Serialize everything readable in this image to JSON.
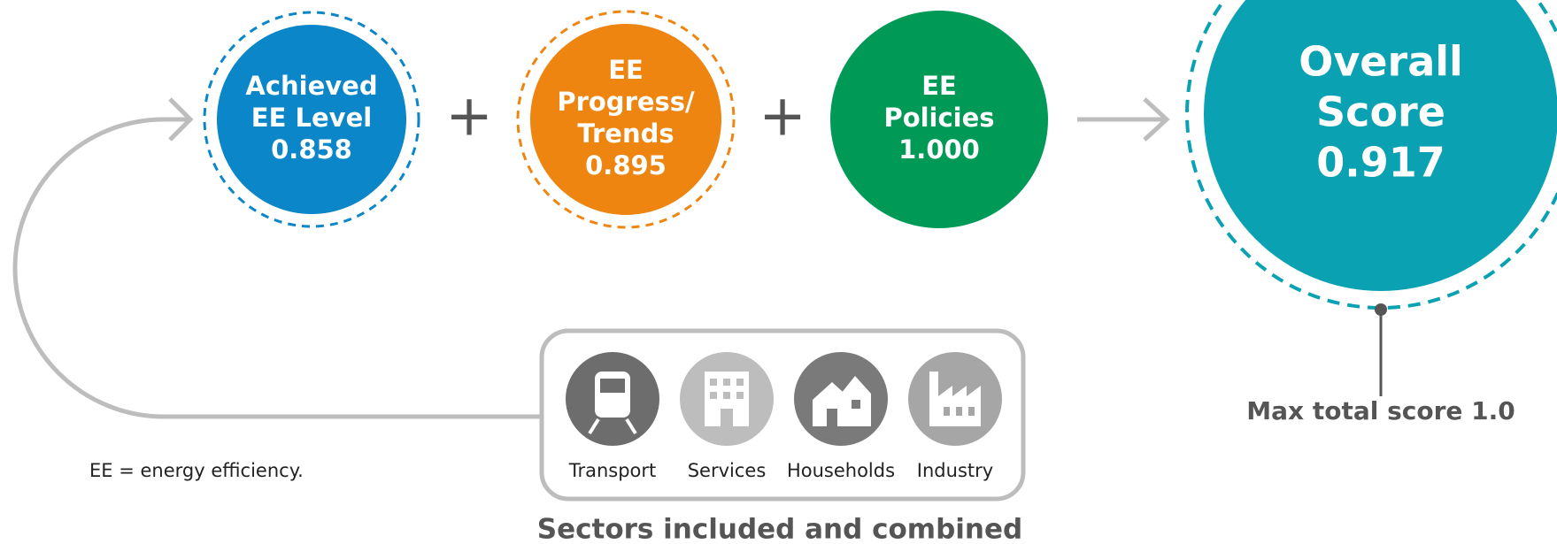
{
  "nodes": [
    {
      "label": [
        "Achieved",
        "EE Level"
      ],
      "value": "0.858"
    },
    {
      "label": [
        "EE",
        "Progress/",
        "Trends"
      ],
      "value": "0.895"
    },
    {
      "label": [
        "EE",
        "Policies"
      ],
      "value": "1.000"
    }
  ],
  "operators": [
    "+",
    "+"
  ],
  "overall": {
    "label": [
      "Overall",
      "Score"
    ],
    "value": "0.917"
  },
  "max_note": "Max total score 1.0",
  "sectors": {
    "items": [
      "Transport",
      "Services",
      "Households",
      "Industry"
    ],
    "caption": "Sectors included and combined"
  },
  "footnote": "EE = energy efficiency."
}
